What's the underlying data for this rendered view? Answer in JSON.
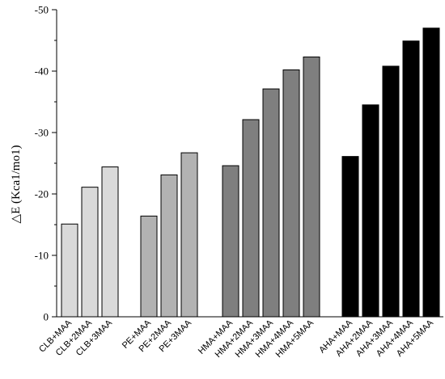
{
  "chart_data": {
    "type": "bar",
    "title": "",
    "xlabel": "",
    "ylabel": "△E (Kca1/mo1)",
    "ylim": [
      0,
      -50
    ],
    "yticks": [
      0,
      -10,
      -20,
      -30,
      -40,
      -50
    ],
    "ytick_labels": [
      "0",
      "-10",
      "-20",
      "-30",
      "-40",
      "-50"
    ],
    "grid": false,
    "groups": [
      {
        "color": "#d9d9d9",
        "categories": [
          "CLB+MAA",
          "CLB+2MAA",
          "CLB+3MAA"
        ],
        "values": [
          -15.1,
          -21.1,
          -24.4
        ]
      },
      {
        "color": "#b2b2b2",
        "categories": [
          "PE+MAA",
          "PE+2MAA",
          "PE+3MAA"
        ],
        "values": [
          -16.4,
          -23.1,
          -26.7
        ]
      },
      {
        "color": "#7f7f7f",
        "categories": [
          "HMA+MAA",
          "HMA+2MAA",
          "HMA+3MAA",
          "HMA+4MAA",
          "HMA+5MAA"
        ],
        "values": [
          -24.6,
          -32.1,
          -37.1,
          -40.2,
          -42.3
        ]
      },
      {
        "color": "#000000",
        "categories": [
          "AHA+MAA",
          "AHA+2MAA",
          "AHA+3MAA",
          "AHA+4MAA",
          "AHA+5MAA"
        ],
        "values": [
          -26.1,
          -34.5,
          -40.8,
          -44.9,
          -47.0
        ]
      }
    ]
  }
}
